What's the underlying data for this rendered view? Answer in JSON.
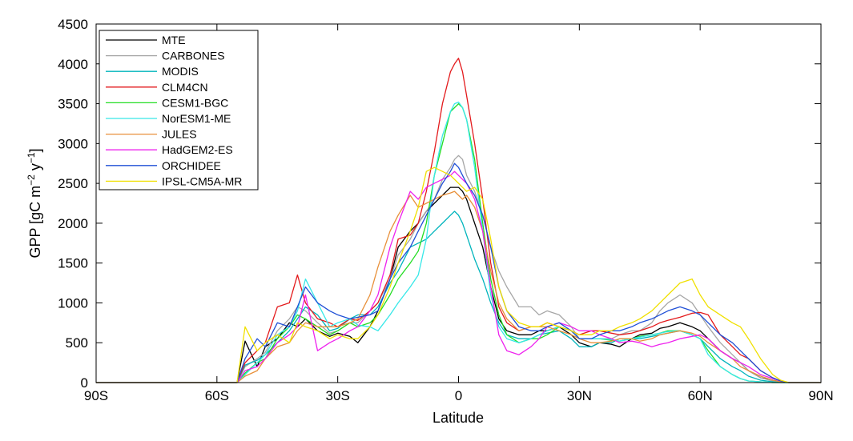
{
  "chart_data": {
    "type": "line",
    "title": "",
    "xlabel": "Latitude",
    "ylabel_parts": [
      "GPP [gC m",
      "−2",
      " y",
      "−1",
      "]"
    ],
    "xlim": [
      -90,
      90
    ],
    "ylim": [
      0,
      4500
    ],
    "xticks": [
      -90,
      -60,
      -30,
      0,
      30,
      60,
      90
    ],
    "xtick_labels": [
      "90S",
      "60S",
      "30S",
      "0",
      "30N",
      "60N",
      "90N"
    ],
    "yticks": [
      0,
      500,
      1000,
      1500,
      2000,
      2500,
      3000,
      3500,
      4000,
      4500
    ],
    "ytick_labels": [
      "0",
      "500",
      "1000",
      "1500",
      "2000",
      "2500",
      "3000",
      "3500",
      "4000",
      "4500"
    ],
    "grid": false,
    "legend_position": "top-left",
    "x": [
      -90,
      -85,
      -80,
      -75,
      -70,
      -65,
      -60,
      -57,
      -55,
      -53,
      -50,
      -48,
      -45,
      -42,
      -40,
      -38,
      -35,
      -32,
      -30,
      -27,
      -25,
      -22,
      -20,
      -17,
      -15,
      -12,
      -10,
      -8,
      -6,
      -4,
      -2,
      -1,
      0,
      1,
      2,
      4,
      6,
      8,
      10,
      12,
      15,
      18,
      20,
      22,
      25,
      28,
      30,
      33,
      35,
      38,
      40,
      43,
      45,
      48,
      50,
      52,
      55,
      58,
      60,
      62,
      65,
      68,
      70,
      72,
      75,
      78,
      80,
      82,
      85,
      90
    ],
    "series": [
      {
        "name": "MTE",
        "color": "#000000",
        "values": [
          0,
          0,
          0,
          0,
          0,
          0,
          0,
          0,
          0,
          520,
          200,
          450,
          550,
          750,
          700,
          800,
          650,
          580,
          620,
          580,
          500,
          700,
          900,
          1300,
          1700,
          1900,
          2000,
          2150,
          2250,
          2350,
          2450,
          2450,
          2450,
          2400,
          2300,
          2000,
          1700,
          1200,
          800,
          650,
          600,
          600,
          650,
          650,
          700,
          600,
          500,
          450,
          500,
          480,
          450,
          550,
          600,
          620,
          680,
          700,
          750,
          700,
          650,
          550,
          400,
          300,
          250,
          150,
          60,
          30,
          10,
          0,
          0,
          0
        ]
      },
      {
        "name": "CARBONES",
        "color": "#a6a6a6",
        "values": [
          0,
          0,
          0,
          0,
          0,
          0,
          0,
          0,
          0,
          200,
          300,
          380,
          650,
          800,
          950,
          900,
          750,
          620,
          650,
          750,
          750,
          900,
          1000,
          1300,
          1600,
          1800,
          2000,
          2150,
          2300,
          2550,
          2700,
          2800,
          2850,
          2800,
          2600,
          2400,
          2100,
          1700,
          1400,
          1200,
          950,
          950,
          850,
          900,
          850,
          700,
          550,
          550,
          550,
          550,
          600,
          650,
          650,
          750,
          900,
          1000,
          1100,
          1000,
          850,
          700,
          500,
          350,
          250,
          150,
          60,
          20,
          10,
          0,
          0,
          0
        ]
      },
      {
        "name": "MODIS",
        "color": "#00b4bc",
        "values": [
          0,
          0,
          0,
          0,
          0,
          0,
          0,
          0,
          0,
          220,
          280,
          350,
          500,
          650,
          800,
          950,
          850,
          650,
          680,
          800,
          850,
          850,
          950,
          1250,
          1400,
          1700,
          1750,
          1800,
          1900,
          2000,
          2100,
          2150,
          2100,
          2000,
          1850,
          1550,
          1300,
          1000,
          750,
          600,
          550,
          550,
          600,
          620,
          650,
          550,
          450,
          450,
          500,
          500,
          550,
          550,
          550,
          580,
          600,
          620,
          650,
          600,
          550,
          450,
          300,
          200,
          150,
          80,
          30,
          10,
          0,
          0,
          0,
          0
        ]
      },
      {
        "name": "CLM4CN",
        "color": "#e31a1c",
        "values": [
          0,
          0,
          0,
          0,
          0,
          0,
          0,
          0,
          0,
          250,
          400,
          500,
          950,
          1000,
          1350,
          1000,
          800,
          750,
          700,
          800,
          780,
          900,
          1000,
          1350,
          1800,
          1850,
          2000,
          2400,
          2900,
          3500,
          3900,
          4000,
          4070,
          3900,
          3600,
          3000,
          2300,
          1500,
          950,
          750,
          650,
          700,
          700,
          750,
          700,
          650,
          600,
          650,
          650,
          620,
          600,
          620,
          650,
          700,
          750,
          780,
          820,
          870,
          880,
          850,
          600,
          450,
          350,
          300,
          150,
          60,
          20,
          0,
          0,
          0
        ]
      },
      {
        "name": "CESM1-BGC",
        "color": "#22dd22",
        "values": [
          0,
          0,
          0,
          0,
          0,
          0,
          0,
          0,
          0,
          120,
          250,
          300,
          550,
          700,
          850,
          800,
          700,
          600,
          650,
          750,
          700,
          750,
          850,
          1100,
          1300,
          1500,
          1650,
          2000,
          2600,
          3000,
          3400,
          3450,
          3500,
          3450,
          3300,
          2800,
          2000,
          1300,
          850,
          600,
          500,
          550,
          550,
          600,
          700,
          650,
          550,
          550,
          550,
          530,
          520,
          550,
          580,
          600,
          620,
          650,
          650,
          600,
          550,
          400,
          200,
          100,
          50,
          20,
          10,
          0,
          0,
          0,
          0,
          0
        ]
      },
      {
        "name": "NorESM1-ME",
        "color": "#38e8e8",
        "values": [
          0,
          0,
          0,
          0,
          0,
          0,
          0,
          0,
          0,
          100,
          250,
          350,
          600,
          700,
          900,
          1300,
          1000,
          700,
          750,
          800,
          720,
          700,
          650,
          850,
          1000,
          1200,
          1350,
          1800,
          2600,
          3100,
          3400,
          3500,
          3520,
          3450,
          3300,
          2700,
          1900,
          1100,
          700,
          550,
          500,
          550,
          600,
          650,
          700,
          650,
          550,
          550,
          550,
          540,
          520,
          550,
          570,
          600,
          620,
          640,
          650,
          600,
          550,
          350,
          200,
          100,
          50,
          20,
          10,
          0,
          0,
          0,
          0,
          0
        ]
      },
      {
        "name": "JULES",
        "color": "#e8903a",
        "values": [
          0,
          0,
          0,
          0,
          0,
          0,
          0,
          0,
          0,
          80,
          150,
          300,
          450,
          500,
          650,
          750,
          700,
          700,
          700,
          750,
          800,
          1100,
          1450,
          1900,
          2100,
          2350,
          2200,
          2250,
          2300,
          2350,
          2380,
          2400,
          2350,
          2300,
          2350,
          2200,
          1900,
          1400,
          1000,
          800,
          650,
          700,
          700,
          700,
          650,
          600,
          550,
          500,
          500,
          520,
          550,
          550,
          520,
          550,
          600,
          620,
          650,
          620,
          580,
          500,
          400,
          300,
          200,
          150,
          80,
          30,
          10,
          0,
          0,
          0
        ]
      },
      {
        "name": "HadGEM2-ES",
        "color": "#ee22ee",
        "values": [
          0,
          0,
          0,
          0,
          0,
          0,
          0,
          0,
          0,
          150,
          200,
          300,
          500,
          600,
          700,
          1100,
          400,
          500,
          550,
          650,
          700,
          900,
          1100,
          1700,
          2000,
          2400,
          2300,
          2450,
          2500,
          2550,
          2600,
          2650,
          2600,
          2550,
          2500,
          2300,
          1900,
          1200,
          600,
          400,
          350,
          450,
          550,
          700,
          750,
          700,
          650,
          650,
          600,
          550,
          500,
          520,
          500,
          450,
          480,
          500,
          550,
          580,
          600,
          550,
          400,
          300,
          250,
          200,
          100,
          50,
          20,
          0,
          0,
          0
        ]
      },
      {
        "name": "ORCHIDEE",
        "color": "#1f4fd6",
        "values": [
          0,
          0,
          0,
          0,
          0,
          0,
          0,
          0,
          0,
          300,
          550,
          450,
          750,
          700,
          950,
          1200,
          1000,
          900,
          850,
          800,
          820,
          850,
          900,
          1300,
          1500,
          1700,
          1900,
          2100,
          2300,
          2500,
          2650,
          2750,
          2700,
          2600,
          2500,
          2350,
          2100,
          1700,
          1200,
          900,
          700,
          650,
          650,
          700,
          750,
          650,
          550,
          550,
          600,
          650,
          650,
          700,
          750,
          800,
          850,
          900,
          950,
          900,
          850,
          750,
          600,
          500,
          400,
          300,
          150,
          60,
          20,
          0,
          0,
          0
        ]
      },
      {
        "name": "IPSL-CM5A-MR",
        "color": "#f0e000",
        "values": [
          0,
          0,
          0,
          0,
          0,
          0,
          0,
          0,
          0,
          700,
          400,
          500,
          600,
          500,
          750,
          700,
          650,
          550,
          600,
          550,
          550,
          700,
          850,
          1200,
          1500,
          1900,
          2200,
          2650,
          2700,
          2650,
          2600,
          2550,
          2500,
          2450,
          2400,
          2450,
          2300,
          1800,
          1200,
          900,
          750,
          700,
          700,
          750,
          700,
          650,
          600,
          600,
          650,
          650,
          700,
          750,
          800,
          900,
          1000,
          1100,
          1250,
          1300,
          1100,
          950,
          850,
          750,
          700,
          550,
          300,
          100,
          30,
          0,
          0,
          0
        ]
      }
    ]
  }
}
